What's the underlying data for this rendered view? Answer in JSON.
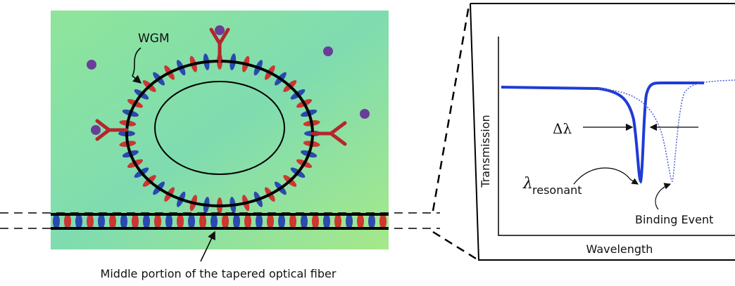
{
  "left_panel": {
    "mode_label": "WGM",
    "fiber_label": "Middle portion of  the tapered optical fiber"
  },
  "right_panel": {
    "y_axis_label": "Transmission",
    "x_axis_label": "Wavelength",
    "shift_label": "Δλ",
    "resonance_symbol": "λ",
    "resonance_subscript": "resonant",
    "binding_label": "Binding Event"
  }
}
